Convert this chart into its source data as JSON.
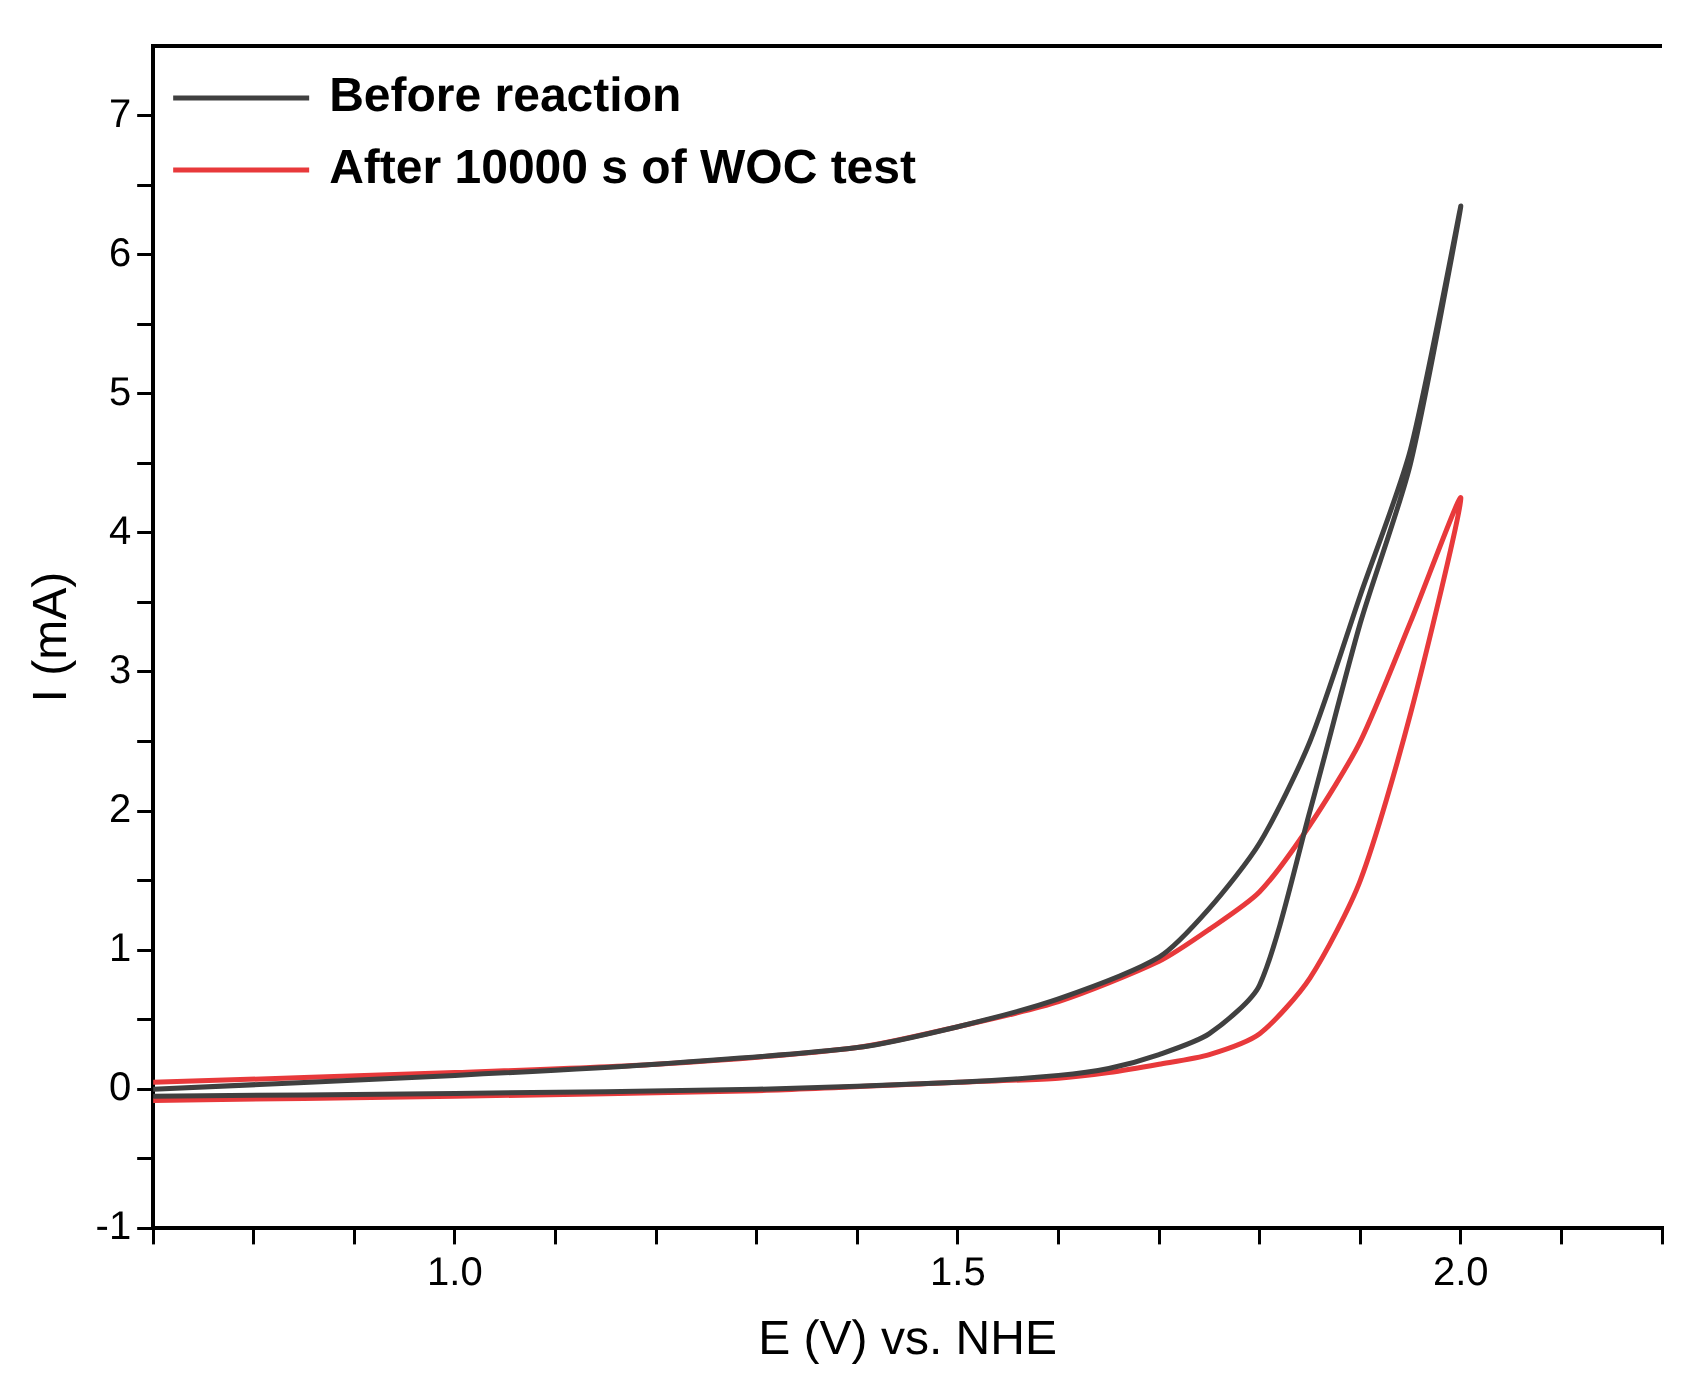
{
  "chart_data": {
    "type": "line",
    "xlabel": "E (V) vs. NHE",
    "ylabel": "I (mA)",
    "xlim": [
      0.7,
      2.2
    ],
    "ylim": [
      -1,
      7.5
    ],
    "xticks": [
      {
        "value": 0.7,
        "label": null
      },
      {
        "value": 0.8,
        "label": null
      },
      {
        "value": 0.9,
        "label": null
      },
      {
        "value": 1.0,
        "label": "1.0"
      },
      {
        "value": 1.1,
        "label": null
      },
      {
        "value": 1.2,
        "label": null
      },
      {
        "value": 1.3,
        "label": null
      },
      {
        "value": 1.4,
        "label": null
      },
      {
        "value": 1.5,
        "label": "1.5"
      },
      {
        "value": 1.6,
        "label": null
      },
      {
        "value": 1.7,
        "label": null
      },
      {
        "value": 1.8,
        "label": null
      },
      {
        "value": 1.9,
        "label": null
      },
      {
        "value": 2.0,
        "label": "2.0"
      },
      {
        "value": 2.1,
        "label": null
      },
      {
        "value": 2.2,
        "label": null
      }
    ],
    "yticks": [
      -1,
      {
        "value": -0.5,
        "label": null
      },
      0,
      {
        "value": 0.5,
        "label": null
      },
      1,
      {
        "value": 1.5,
        "label": null
      },
      2,
      {
        "value": 2.5,
        "label": null
      },
      3,
      {
        "value": 3.5,
        "label": null
      },
      4,
      {
        "value": 4.5,
        "label": null
      },
      5,
      {
        "value": 5.5,
        "label": null
      },
      6,
      {
        "value": 6.5,
        "label": null
      },
      7
    ],
    "legend": "top left",
    "grid": false,
    "marker": "none",
    "line_style": "solid",
    "series": [
      {
        "name": "Before reaction",
        "color": "#404040",
        "x": [
          0.7,
          1.0,
          1.3,
          1.5,
          1.6,
          1.65,
          1.7,
          1.75,
          1.8,
          1.85,
          1.9,
          1.95,
          2.0,
          1.95,
          1.9,
          1.85,
          1.8,
          1.75,
          1.7,
          1.6,
          1.5,
          1.4,
          1.2,
          1.0,
          0.7
        ],
        "values": [
          -0.05,
          -0.03,
          0.0,
          0.05,
          0.1,
          0.15,
          0.25,
          0.4,
          0.75,
          2.0,
          3.35,
          4.5,
          6.35,
          4.6,
          3.55,
          2.5,
          1.77,
          1.3,
          0.95,
          0.65,
          0.45,
          0.3,
          0.18,
          0.1,
          0.0
        ]
      },
      {
        "name": "After 10000 s of WOC test",
        "color": "#e8393b",
        "x": [
          0.7,
          1.0,
          1.3,
          1.5,
          1.6,
          1.65,
          1.7,
          1.75,
          1.8,
          1.85,
          1.9,
          1.95,
          2.0,
          1.95,
          1.9,
          1.85,
          1.8,
          1.75,
          1.7,
          1.6,
          1.5,
          1.4,
          1.2,
          1.0,
          0.7
        ],
        "values": [
          -0.08,
          -0.05,
          -0.01,
          0.05,
          0.08,
          0.12,
          0.18,
          0.25,
          0.4,
          0.8,
          1.5,
          2.7,
          4.25,
          3.36,
          2.5,
          1.9,
          1.42,
          1.15,
          0.92,
          0.63,
          0.45,
          0.3,
          0.18,
          0.12,
          0.05
        ]
      }
    ]
  }
}
